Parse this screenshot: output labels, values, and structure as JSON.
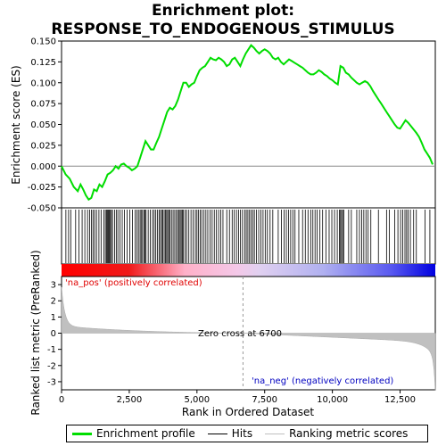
{
  "chart_data": {
    "type": "line",
    "title_line1": "Enrichment plot:",
    "title_line2": "RESPONSE_TO_ENDOGENOUS_STIMULUS",
    "xlabel": "Rank in Ordered Dataset",
    "ylabel_top": "Enrichment score (ES)",
    "ylabel_bottom": "Ranked list metric (PreRanked)",
    "xlim": [
      0,
      13800
    ],
    "es_ylim": [
      -0.05,
      0.15
    ],
    "metric_ylim": [
      -3.5,
      3.5
    ],
    "x_ticks": [
      0,
      2500,
      5000,
      7500,
      10000,
      12500
    ],
    "x_tick_labels": [
      "0",
      "2,500",
      "5,000",
      "7,500",
      "10,000",
      "12,500"
    ],
    "es_ticks": [
      -0.05,
      -0.025,
      0.0,
      0.025,
      0.05,
      0.075,
      0.1,
      0.125,
      0.15
    ],
    "es_tick_labels": [
      "-0.050",
      "-0.025",
      "0.000",
      "0.025",
      "0.050",
      "0.075",
      "0.100",
      "0.125",
      "0.150"
    ],
    "metric_ticks": [
      3,
      2,
      1,
      0,
      -1,
      -2,
      -3
    ],
    "metric_tick_labels": [
      "3",
      "2",
      "1",
      "0",
      "-1",
      "-2",
      "-3"
    ],
    "zero_cross_label": "Zero cross at 6700",
    "zero_cross_x": 6700,
    "pos_label": "'na_pos' (positively correlated)",
    "neg_label": "'na_neg' (negatively correlated)",
    "legend": {
      "enrichment": "Enrichment profile",
      "hits": "Hits",
      "ranking": "Ranking metric scores"
    },
    "colors": {
      "enrichment": "#00dd00",
      "hits": "#000000",
      "ranking": "#c0c0c0",
      "pos": "#ff0000",
      "neg": "#0000ff"
    },
    "es_profile": {
      "x": [
        0,
        150,
        300,
        450,
        600,
        700,
        800,
        900,
        1000,
        1100,
        1200,
        1300,
        1400,
        1500,
        1600,
        1700,
        1800,
        1900,
        2000,
        2100,
        2200,
        2300,
        2400,
        2500,
        2600,
        2700,
        2800,
        2900,
        3000,
        3100,
        3200,
        3300,
        3400,
        3500,
        3600,
        3700,
        3800,
        3900,
        4000,
        4100,
        4200,
        4300,
        4400,
        4500,
        4600,
        4700,
        4800,
        4900,
        5000,
        5100,
        5200,
        5300,
        5400,
        5500,
        5600,
        5700,
        5800,
        5900,
        6000,
        6100,
        6200,
        6300,
        6400,
        6500,
        6600,
        6700,
        6800,
        6900,
        7000,
        7100,
        7200,
        7300,
        7400,
        7500,
        7600,
        7700,
        7800,
        7900,
        8000,
        8100,
        8200,
        8300,
        8400,
        8500,
        8600,
        8700,
        8800,
        8900,
        9000,
        9100,
        9200,
        9300,
        9400,
        9500,
        9600,
        9700,
        9800,
        9900,
        10000,
        10100,
        10200,
        10300,
        10400,
        10500,
        10600,
        10700,
        10800,
        10900,
        11000,
        11100,
        11200,
        11300,
        11400,
        11500,
        11600,
        11700,
        11800,
        11900,
        12000,
        12100,
        12200,
        12300,
        12400,
        12500,
        12600,
        12700,
        12800,
        12900,
        13000,
        13100,
        13200,
        13300,
        13400,
        13500,
        13600,
        13700
      ],
      "y": [
        0.0,
        -0.01,
        -0.015,
        -0.025,
        -0.03,
        -0.022,
        -0.028,
        -0.035,
        -0.04,
        -0.038,
        -0.028,
        -0.03,
        -0.022,
        -0.025,
        -0.018,
        -0.01,
        -0.008,
        -0.005,
        0.0,
        -0.003,
        0.002,
        0.003,
        0.0,
        -0.002,
        -0.005,
        -0.003,
        0.0,
        0.01,
        0.02,
        0.03,
        0.025,
        0.02,
        0.02,
        0.028,
        0.035,
        0.045,
        0.055,
        0.065,
        0.07,
        0.068,
        0.072,
        0.08,
        0.09,
        0.1,
        0.1,
        0.095,
        0.098,
        0.1,
        0.108,
        0.115,
        0.118,
        0.12,
        0.125,
        0.13,
        0.128,
        0.127,
        0.13,
        0.128,
        0.125,
        0.12,
        0.122,
        0.128,
        0.13,
        0.125,
        0.12,
        0.128,
        0.135,
        0.14,
        0.145,
        0.142,
        0.138,
        0.135,
        0.138,
        0.14,
        0.138,
        0.135,
        0.13,
        0.128,
        0.13,
        0.125,
        0.122,
        0.125,
        0.128,
        0.126,
        0.124,
        0.122,
        0.12,
        0.118,
        0.115,
        0.112,
        0.11,
        0.11,
        0.112,
        0.115,
        0.113,
        0.11,
        0.108,
        0.105,
        0.103,
        0.1,
        0.098,
        0.12,
        0.118,
        0.112,
        0.11,
        0.106,
        0.103,
        0.1,
        0.098,
        0.1,
        0.102,
        0.1,
        0.096,
        0.09,
        0.085,
        0.08,
        0.075,
        0.07,
        0.065,
        0.06,
        0.055,
        0.05,
        0.046,
        0.045,
        0.05,
        0.055,
        0.052,
        0.048,
        0.044,
        0.04,
        0.035,
        0.028,
        0.02,
        0.015,
        0.01,
        0.002
      ]
    },
    "hits": [
      160,
      260,
      340,
      520,
      640,
      760,
      860,
      960,
      1040,
      1100,
      1160,
      1220,
      1290,
      1380,
      1460,
      1560,
      1620,
      1660,
      1700,
      1730,
      1760,
      1800,
      1840,
      1880,
      1960,
      2020,
      2080,
      2160,
      2240,
      2320,
      2420,
      2520,
      2620,
      2720,
      2780,
      2840,
      2900,
      2940,
      2990,
      3040,
      3080,
      3120,
      3200,
      3280,
      3360,
      3420,
      3480,
      3540,
      3600,
      3650,
      3700,
      3740,
      3790,
      3840,
      3880,
      3920,
      3960,
      4000,
      4060,
      4120,
      4180,
      4240,
      4290,
      4340,
      4380,
      4420,
      4460,
      4500,
      4560,
      4620,
      4700,
      4780,
      4860,
      4940,
      5000,
      5060,
      5120,
      5180,
      5260,
      5330,
      5400,
      5480,
      5560,
      5640,
      5720,
      5800,
      5880,
      5960,
      6100,
      6200,
      6300,
      6380,
      6460,
      6540,
      6600,
      6680,
      6760,
      6820,
      6880,
      6940,
      7000,
      7060,
      7120,
      7200,
      7280,
      7360,
      7440,
      7520,
      7600,
      7700,
      7800,
      8000,
      8120,
      8220,
      8300,
      8380,
      8460,
      8540,
      8620,
      8760,
      8900,
      9000,
      9100,
      9200,
      9280,
      9360,
      9440,
      9540,
      9640,
      9760,
      9880,
      9980,
      10080,
      10180,
      10260,
      10300,
      10340,
      10380,
      10420,
      10600,
      10700,
      10900,
      11000,
      11080,
      11160,
      11240,
      11320,
      11420,
      11700,
      12000,
      12100,
      12300,
      12420,
      12520,
      12600,
      12680,
      12740,
      12800,
      12880,
      13000,
      13100,
      13420,
      13600
    ]
  }
}
